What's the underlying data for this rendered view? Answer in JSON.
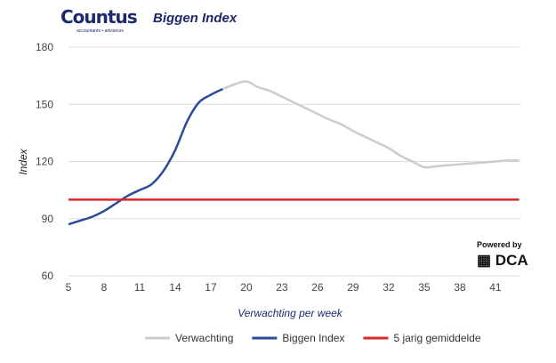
{
  "header": {
    "logo": "Countus",
    "logo_tagline": "accountants • adviseurs",
    "title": "Biggen Index"
  },
  "badge": {
    "powered_by": "Powered by",
    "brand": "DCA"
  },
  "chart_data": {
    "type": "line",
    "title": "Biggen Index",
    "xlabel": "Verwachting per week",
    "ylabel": "Index",
    "ylim": [
      60,
      180
    ],
    "yticks": [
      60,
      90,
      120,
      150,
      180
    ],
    "xlim": [
      5,
      43
    ],
    "xticks": [
      5,
      8,
      11,
      14,
      17,
      20,
      23,
      26,
      29,
      32,
      35,
      38,
      41
    ],
    "grid": true,
    "legend": "bottom",
    "series": [
      {
        "name": "Verwachting",
        "color": "#cccccc",
        "x": [
          18,
          19,
          20,
          21,
          22,
          23,
          24,
          25,
          26,
          27,
          28,
          29,
          30,
          31,
          32,
          33,
          34,
          35,
          36,
          37,
          38,
          39,
          40,
          41,
          42,
          43
        ],
        "values": [
          158,
          160.5,
          162,
          159,
          157,
          154,
          151,
          148,
          145,
          142,
          139.5,
          136,
          133,
          130,
          127,
          123,
          120,
          117,
          117.5,
          118,
          118.5,
          119,
          119.5,
          120,
          120.5,
          120.5
        ]
      },
      {
        "name": "Biggen Index",
        "color": "#2b4a99",
        "x": [
          5,
          6,
          7,
          8,
          9,
          10,
          11,
          12,
          13,
          14,
          15,
          16,
          17,
          18
        ],
        "values": [
          87,
          89,
          91,
          94,
          98,
          102,
          105,
          108,
          115,
          126,
          141,
          151,
          155,
          158
        ]
      },
      {
        "name": "5 jarig gemiddelde",
        "color": "#d62a2a",
        "x": [
          5,
          43
        ],
        "values": [
          100,
          100
        ]
      }
    ]
  }
}
